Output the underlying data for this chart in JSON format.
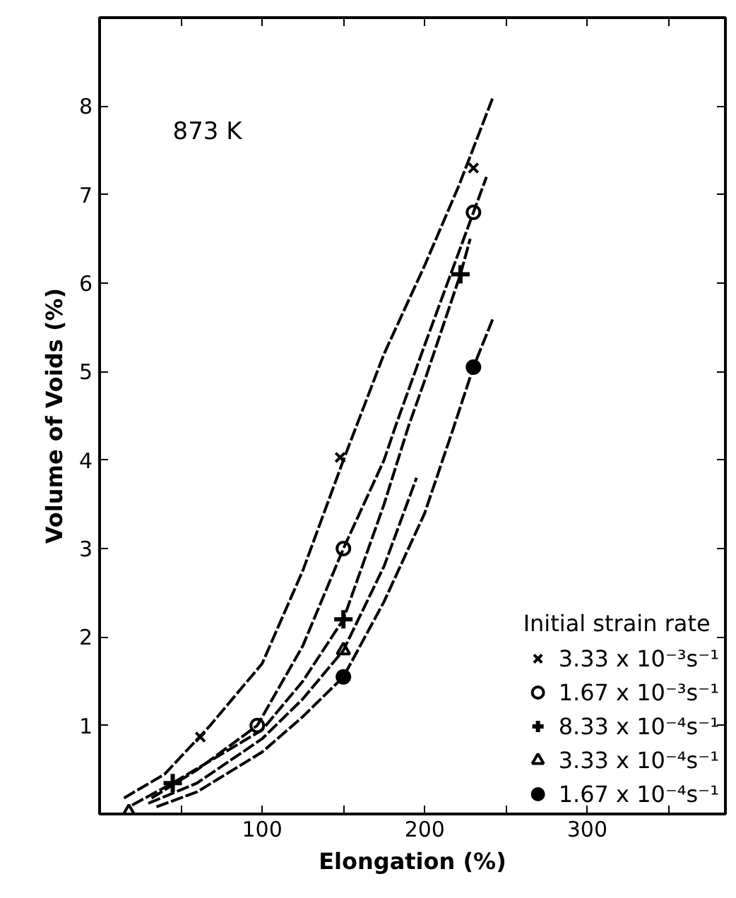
{
  "chart_data": {
    "type": "scatter",
    "xlabel": "Elongation (%)",
    "ylabel": "Volume of Voids (%)",
    "legend_title": "Initial strain rate",
    "legend": "right",
    "grid": false,
    "annotations": [
      "873 K"
    ],
    "xlim": [
      0,
      385
    ],
    "ylim": [
      0,
      9
    ],
    "xticks": [
      {
        "value": 50,
        "label": null
      },
      100,
      {
        "value": 150,
        "label": null
      },
      200,
      {
        "value": 250,
        "label": null
      },
      300,
      {
        "value": 350,
        "label": null
      }
    ],
    "yticks": [
      1,
      2,
      3,
      4,
      5,
      6,
      7,
      8
    ],
    "series": [
      {
        "name": "3.33 x 10⁻³s⁻¹",
        "color": "#000000",
        "marker": "x",
        "x": [
          62,
          148,
          230
        ],
        "values": [
          0.87,
          4.03,
          7.3
        ]
      },
      {
        "name": "1.67 x 10⁻³s⁻¹",
        "color": "#000000",
        "marker": "circle",
        "x": [
          97,
          150,
          230
        ],
        "values": [
          1.0,
          3.0,
          6.8
        ]
      },
      {
        "name": "8.33 x 10⁻⁴s⁻¹",
        "color": "#000000",
        "marker": "plus",
        "x": [
          45,
          150,
          222
        ],
        "values": [
          0.35,
          2.2,
          6.1
        ]
      },
      {
        "name": "3.33 x 10⁻⁴s⁻¹",
        "color": "#000000",
        "marker": "triangle",
        "x": [
          18,
          150
        ],
        "values": [
          0.02,
          1.85
        ]
      },
      {
        "name": "1.67 x 10⁻⁴s⁻¹",
        "color": "#000000",
        "marker": "filled_circle",
        "x": [
          150,
          230
        ],
        "values": [
          1.55,
          5.05
        ]
      },
      {
        "type": "line",
        "color": "#000000",
        "line_style": "dashed",
        "x": [
          15,
          40,
          68,
          100,
          125,
          150,
          175,
          200,
          221,
          242
        ],
        "values": [
          0.18,
          0.45,
          1.0,
          1.7,
          2.75,
          4.0,
          5.2,
          6.2,
          7.1,
          8.1
        ]
      },
      {
        "type": "line",
        "color": "#000000",
        "line_style": "dashed",
        "x": [
          32,
          60,
          97,
          125,
          150,
          175,
          182,
          200,
          230,
          238
        ],
        "values": [
          0.18,
          0.5,
          1.0,
          1.9,
          3.0,
          4.0,
          4.38,
          5.3,
          6.8,
          7.2
        ]
      },
      {
        "type": "line",
        "color": "#000000",
        "line_style": "dashed",
        "x": [
          20,
          45,
          100,
          125,
          150,
          175,
          190,
          200,
          222,
          228
        ],
        "values": [
          0.1,
          0.35,
          0.95,
          1.5,
          2.2,
          3.5,
          4.38,
          4.9,
          6.1,
          6.5
        ]
      },
      {
        "type": "line",
        "color": "#000000",
        "line_style": "dashed",
        "x": [
          30,
          60,
          100,
          125,
          150,
          175,
          195
        ],
        "values": [
          0.12,
          0.35,
          0.85,
          1.3,
          1.85,
          2.8,
          3.8
        ]
      },
      {
        "type": "line",
        "color": "#000000",
        "line_style": "dashed",
        "x": [
          35,
          60,
          100,
          125,
          150,
          175,
          200,
          218,
          230,
          242
        ],
        "values": [
          0.08,
          0.25,
          0.7,
          1.1,
          1.55,
          2.4,
          3.4,
          4.38,
          5.05,
          5.6
        ]
      }
    ]
  }
}
